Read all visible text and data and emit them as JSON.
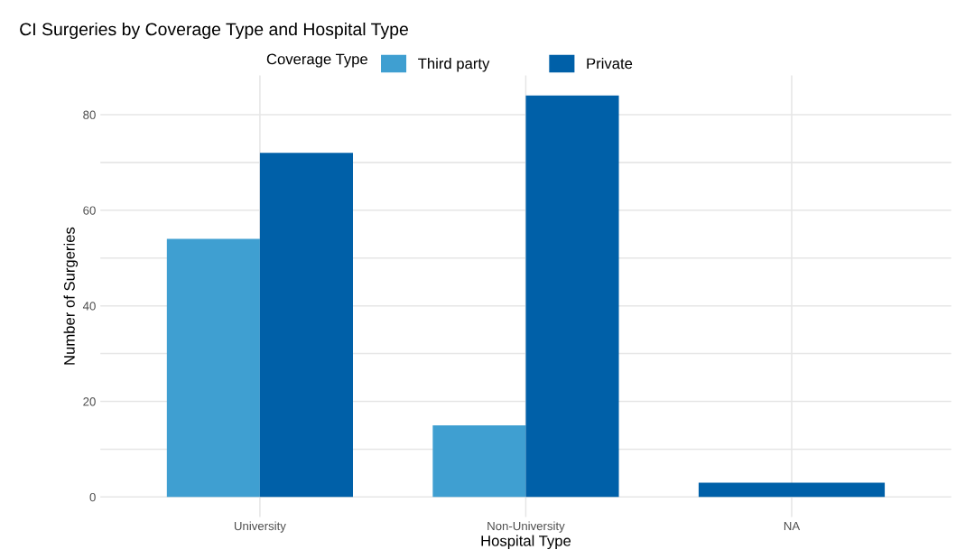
{
  "chart_data": {
    "type": "bar",
    "title": "CI Surgeries by Coverage Type and Hospital Type",
    "xlabel": "Hospital Type",
    "ylabel": "Number of Surgeries",
    "legend_title": "Coverage Type",
    "categories": [
      "University",
      "Non-University",
      "NA"
    ],
    "series": [
      {
        "name": "Third party",
        "color": "#3f9fd1",
        "values": [
          54,
          15,
          null
        ]
      },
      {
        "name": "Private",
        "color": "#0060a8",
        "values": [
          72,
          84,
          3
        ]
      }
    ],
    "ylim": [
      -4.2,
      88.2
    ],
    "yticks": [
      0,
      {
        "value": 10,
        "label": null
      },
      20,
      {
        "value": 30,
        "label": null
      },
      40,
      {
        "value": 50,
        "label": null
      },
      60,
      {
        "value": 70,
        "label": null
      },
      80
    ],
    "grid": true,
    "legend": "top"
  }
}
